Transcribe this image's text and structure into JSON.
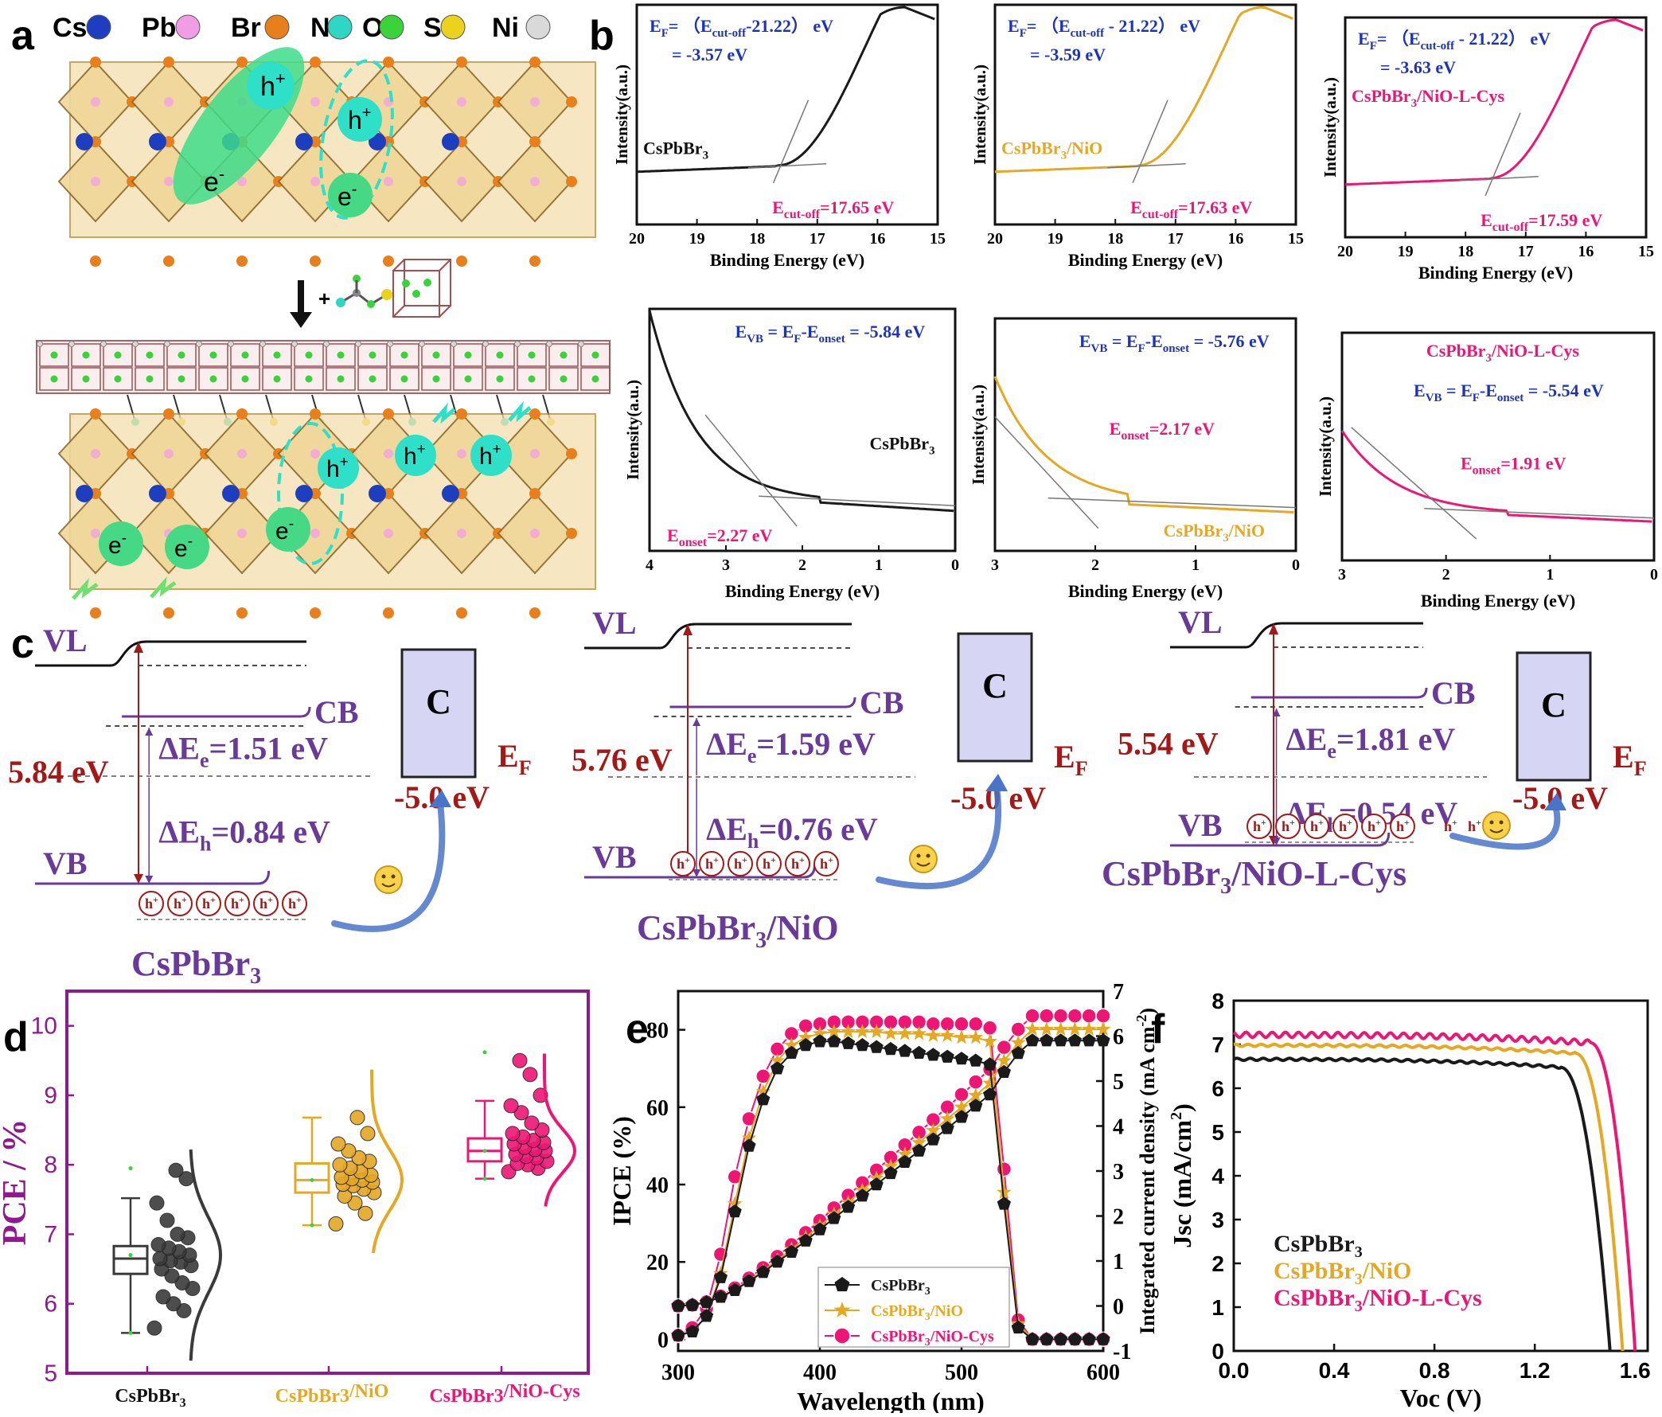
{
  "colors": {
    "black": "#1a1a1a",
    "gold": "#e4a823",
    "pink": "#ee1675",
    "navy": "#1d33b8",
    "purple": "#6a3a99",
    "darkred": "#a51818",
    "magenta": "#8e1a8e",
    "box": "#d6d6f4"
  },
  "panel_letters": {
    "a": "a",
    "b": "b",
    "c": "c",
    "d": "d",
    "e": "e",
    "f": "f"
  },
  "panel_a": {
    "legend": [
      {
        "label": "Cs",
        "color": "#1d3fbf"
      },
      {
        "label": "Pb",
        "color": "#f19de6"
      },
      {
        "label": "Br",
        "color": "#e87f1a"
      },
      {
        "label": "N",
        "color": "#2fd6c4"
      },
      {
        "label": "O",
        "color": "#3ad33a"
      },
      {
        "label": "S",
        "color": "#ebd31d"
      },
      {
        "label": "Ni",
        "color": "#d9d9d9"
      }
    ],
    "hole": "h",
    "electron": "e",
    "plus": "+",
    "sup_plus": "+",
    "sup_minus": "-"
  },
  "panel_b": {
    "x_label": "Binding Energy (eV)",
    "y_label": "Intensity(a.u.)",
    "top": [
      {
        "ef_line1": "E",
        "ef_sub": "F",
        "ef_mid": "= （E",
        "ef_sub2": "cut-off",
        "ef_end": "-21.22） eV",
        "ef_line2": "= -3.57 eV",
        "sample": "CsPbBr",
        "sample_sub": "3",
        "sample_tail": "",
        "cutoff": "E",
        "cutoff_sub": "cut-off",
        "cutoff_val": "=17.65 eV",
        "color": "#1a1a1a"
      },
      {
        "ef_line1": "E",
        "ef_sub": "F",
        "ef_mid": "= （E",
        "ef_sub2": "cut-off",
        "ef_end": " - 21.22） eV",
        "ef_line2": "= -3.59 eV",
        "sample": "CsPbBr",
        "sample_sub": "3",
        "sample_tail": "/NiO",
        "cutoff": "E",
        "cutoff_sub": "cut-off",
        "cutoff_val": "=17.63 eV",
        "color": "#e4a823"
      },
      {
        "ef_line1": "E",
        "ef_sub": "F",
        "ef_mid": "= （E",
        "ef_sub2": "cut-off",
        "ef_end": " - 21.22） eV",
        "ef_line2": "= -3.63 eV",
        "sample": "CsPbBr",
        "sample_sub": "3",
        "sample_tail": "/NiO-L-Cys",
        "cutoff": "E",
        "cutoff_sub": "cut-off",
        "cutoff_val": "=17.59 eV",
        "color": "#ee1675"
      }
    ],
    "top_ticks": [
      "20",
      "19",
      "18",
      "17",
      "16",
      "15"
    ],
    "bottom": [
      {
        "evb_a": "E",
        "evb_sub": "VB",
        "evb_b": " = E",
        "evb_sub2": "F",
        "evb_c": "-E",
        "evb_sub3": "onset",
        "evb_d": " = -5.84 eV",
        "onset": "E",
        "onset_sub": "onset",
        "onset_val": "=2.27 eV",
        "sample": "CsPbBr",
        "sample_sub": "3",
        "sample_tail": "",
        "ticks": [
          "4",
          "3",
          "2",
          "1",
          "0"
        ],
        "color": "#1a1a1a"
      },
      {
        "evb_a": "E",
        "evb_sub": "VB",
        "evb_b": " = E",
        "evb_sub2": "F",
        "evb_c": "-E",
        "evb_sub3": "onset",
        "evb_d": " = -5.76 eV",
        "onset": "E",
        "onset_sub": "onset",
        "onset_val": "=2.17 eV",
        "sample": "CsPbBr",
        "sample_sub": "3",
        "sample_tail": "/NiO",
        "ticks": [
          "3",
          "2",
          "1",
          "0"
        ],
        "color": "#e4a823"
      },
      {
        "evb_a": "E",
        "evb_sub": "VB",
        "evb_b": " = E",
        "evb_sub2": "F",
        "evb_c": "-E",
        "evb_sub3": "onset",
        "evb_d": " = -5.54 eV",
        "onset": "E",
        "onset_sub": "onset",
        "onset_val": "=1.91 eV",
        "sample": "CsPbBr",
        "sample_sub": "3",
        "sample_tail": "/NiO-L-Cys",
        "ticks": [
          "3",
          "2",
          "1",
          "0"
        ],
        "color": "#ee1675"
      }
    ]
  },
  "panel_c": {
    "vl": "VL",
    "cb": "CB",
    "vb": "VB",
    "c_box": "C",
    "ef": "E",
    "ef_sub": "F",
    "ef_val": "-5.0 eV",
    "hole": "h",
    "hole_sup": "+",
    "diagrams": [
      {
        "gap": "5.84 eV",
        "de": "ΔE",
        "de_sub": "e",
        "de_val": "=1.51 eV",
        "dh": "ΔE",
        "dh_sub": "h",
        "dh_val": "=0.84 eV",
        "name": "CsPbBr",
        "name_sub": "3",
        "name_tail": ""
      },
      {
        "gap": "5.76 eV",
        "de": "ΔE",
        "de_sub": "e",
        "de_val": "=1.59 eV",
        "dh": "ΔE",
        "dh_sub": "h",
        "dh_val": "=0.76 eV",
        "name": "CsPbBr",
        "name_sub": "3",
        "name_tail": "/NiO"
      },
      {
        "gap": "5.54 eV",
        "de": "ΔE",
        "de_sub": "e",
        "de_val": "=1.81 eV",
        "dh": "ΔE",
        "dh_sub": "h",
        "dh_val": "=0.54 eV",
        "name": "CsPbBr",
        "name_sub": "3",
        "name_tail": "/NiO-L-Cys"
      }
    ]
  },
  "chart_data": [
    {
      "panel": "d",
      "type": "box",
      "ylabel": "PCE / %",
      "ylim": [
        5,
        10.5
      ],
      "yticks": [
        5,
        6,
        7,
        8,
        9,
        10
      ],
      "categories": [
        {
          "label": "CsPbBr3",
          "display": "CsPbBr",
          "sub": "3",
          "tail": "",
          "color": "#3a3a3a",
          "min": 5.58,
          "q1": 6.43,
          "median": 6.65,
          "mean": 6.7,
          "q3": 6.83,
          "max": 7.52,
          "outlier": 7.95,
          "points": [
            5.65,
            5.9,
            6.0,
            6.1,
            6.22,
            6.3,
            6.4,
            6.5,
            6.55,
            6.6,
            6.62,
            6.65,
            6.7,
            6.75,
            6.8,
            6.85,
            6.95,
            7.0,
            7.2,
            7.45,
            7.8,
            7.92
          ]
        },
        {
          "label": "CsPbBr3/NiO",
          "display": "CsPbBr3",
          "sub": "",
          "tail": "/NiO",
          "color": "#e4a823",
          "min": 7.13,
          "q1": 7.6,
          "median": 7.78,
          "mean": 7.78,
          "q3": 8.02,
          "max": 8.68,
          "outlier": null,
          "points": [
            7.15,
            7.3,
            7.45,
            7.55,
            7.6,
            7.65,
            7.7,
            7.72,
            7.75,
            7.78,
            7.8,
            7.82,
            7.85,
            7.9,
            7.95,
            8.0,
            8.05,
            8.1,
            8.2,
            8.3,
            8.45,
            8.68
          ]
        },
        {
          "label": "CsPbBr3/NiO-Cys",
          "display": "CsPbBr3",
          "sub": "",
          "tail": "/NiO-Cys",
          "color": "#ee1675",
          "min": 7.8,
          "q1": 8.05,
          "median": 8.2,
          "mean": 8.2,
          "q3": 8.38,
          "max": 8.92,
          "outlier": 9.62,
          "points": [
            7.9,
            7.95,
            8.0,
            8.02,
            8.05,
            8.1,
            8.12,
            8.15,
            8.2,
            8.22,
            8.25,
            8.3,
            8.32,
            8.35,
            8.4,
            8.45,
            8.5,
            8.6,
            8.75,
            8.85,
            9.0,
            9.3,
            9.5
          ]
        }
      ]
    },
    {
      "panel": "e",
      "type": "line",
      "xlabel": "Wavelength (nm)",
      "ylabel": "IPCE (%)",
      "ylabel_right": "Integrated current density (mA cm",
      "ylabel_right_sup": "-2",
      "ylabel_right_tail": ")",
      "xlim": [
        300,
        600
      ],
      "ylim": [
        -3,
        90
      ],
      "ylim_right": [
        -1,
        7
      ],
      "xticks": [
        300,
        400,
        500,
        600
      ],
      "yticks": [
        0,
        20,
        40,
        60,
        80
      ],
      "yticks_right": [
        -1,
        0,
        1,
        2,
        3,
        4,
        5,
        6,
        7
      ],
      "x": [
        300,
        310,
        320,
        330,
        340,
        350,
        360,
        370,
        380,
        390,
        400,
        410,
        420,
        430,
        440,
        450,
        460,
        470,
        480,
        490,
        500,
        510,
        520,
        530,
        540,
        550,
        560,
        570,
        580,
        590,
        600
      ],
      "series": [
        {
          "name": "CsPbBr3",
          "display": "CsPbBr",
          "sub": "3",
          "tail": "",
          "color": "#1a1a1a",
          "marker": "pentagon",
          "ipce": [
            1,
            2,
            6,
            16,
            33,
            50,
            62,
            70,
            74,
            76,
            77,
            77,
            76.5,
            76,
            75.5,
            75,
            74.5,
            74,
            73.5,
            73,
            72.5,
            72,
            71,
            35,
            3,
            0,
            0,
            0,
            0,
            0,
            0
          ],
          "jsc": [
            0,
            0.02,
            0.08,
            0.2,
            0.35,
            0.55,
            0.75,
            0.98,
            1.2,
            1.45,
            1.7,
            1.95,
            2.2,
            2.45,
            2.7,
            2.95,
            3.2,
            3.45,
            3.7,
            3.95,
            4.2,
            4.45,
            4.7,
            5.2,
            5.62,
            5.9,
            5.9,
            5.9,
            5.9,
            5.9,
            5.9
          ]
        },
        {
          "name": "CsPbBr3/NiO",
          "display": "CsPbBr",
          "sub": "3",
          "tail": "/NiO",
          "color": "#e4a823",
          "marker": "star",
          "ipce": [
            1,
            2,
            6,
            17,
            35,
            52,
            64,
            72,
            76,
            78,
            79,
            79.5,
            79.5,
            79.5,
            79.5,
            79,
            79,
            79,
            78.5,
            78.5,
            78,
            78,
            77,
            38,
            4,
            0,
            0,
            0,
            0,
            0,
            0
          ],
          "jsc": [
            0,
            0.02,
            0.08,
            0.2,
            0.36,
            0.57,
            0.78,
            1.02,
            1.26,
            1.52,
            1.78,
            2.04,
            2.3,
            2.57,
            2.84,
            3.1,
            3.37,
            3.63,
            3.9,
            4.16,
            4.42,
            4.68,
            4.95,
            5.45,
            5.85,
            6.15,
            6.15,
            6.15,
            6.15,
            6.15,
            6.15
          ]
        },
        {
          "name": "CsPbBr3/NiO-Cys",
          "display": "CsPbBr",
          "sub": "3",
          "tail": "/NiO-Cys",
          "color": "#ee1675",
          "marker": "circle",
          "ipce": [
            1,
            3,
            8,
            22,
            42,
            57,
            68,
            75,
            79,
            81,
            81.5,
            82,
            82,
            82,
            82,
            82,
            82,
            82,
            81.5,
            81.5,
            81.5,
            81.5,
            80.5,
            44,
            5,
            0,
            0,
            0,
            0,
            0,
            0
          ],
          "jsc": [
            0,
            0.02,
            0.09,
            0.22,
            0.4,
            0.62,
            0.85,
            1.1,
            1.36,
            1.63,
            1.9,
            2.18,
            2.46,
            2.74,
            3.02,
            3.3,
            3.58,
            3.86,
            4.14,
            4.42,
            4.7,
            4.98,
            5.26,
            5.75,
            6.15,
            6.45,
            6.45,
            6.45,
            6.45,
            6.45,
            6.45
          ]
        }
      ]
    },
    {
      "panel": "f",
      "type": "line",
      "xlabel": "Voc (V)",
      "ylabel": "Jsc (mA/cm",
      "ylabel_sup": "2",
      "ylabel_tail": ")",
      "xlim": [
        0,
        1.65
      ],
      "ylim": [
        0,
        8
      ],
      "xticks": [
        0.0,
        0.4,
        0.8,
        1.2,
        1.6
      ],
      "xtick_labels": [
        "0.0",
        "0.4",
        "0.8",
        "1.2",
        "1.6"
      ],
      "yticks": [
        0,
        1,
        2,
        3,
        4,
        5,
        6,
        7,
        8
      ],
      "series": [
        {
          "name": "CsPbBr3",
          "display": "CsPbBr",
          "sub": "3",
          "tail": "",
          "color": "#1a1a1a",
          "jsc": 6.66,
          "voc": 1.5,
          "vk": 1.3
        },
        {
          "name": "CsPbBr3/NiO",
          "display": "CsPbBr",
          "sub": "3",
          "tail": "/NiO",
          "color": "#e4a823",
          "jsc": 6.98,
          "voc": 1.55,
          "vk": 1.36
        },
        {
          "name": "CsPbBr3/NiO-L-Cys",
          "display": "CsPbBr",
          "sub": "3",
          "tail": "/NiO-L-Cys",
          "color": "#ee1675",
          "jsc": 7.22,
          "voc": 1.6,
          "vk": 1.42
        }
      ]
    }
  ]
}
